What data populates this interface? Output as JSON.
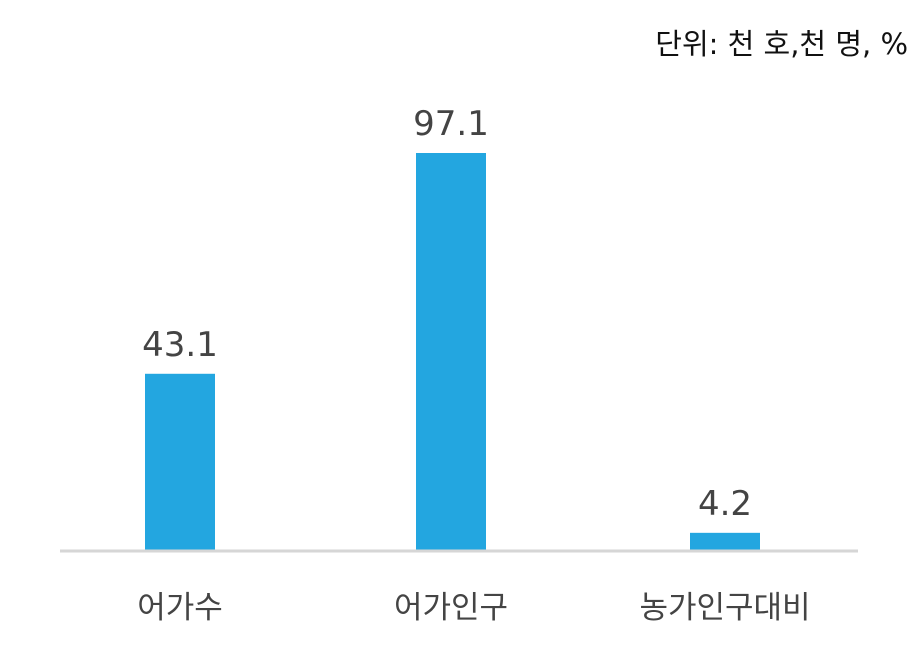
{
  "chart_data": {
    "type": "bar",
    "unit_note": "단위: 천 호,천 명, %",
    "categories": [
      "어가수",
      "어가인구",
      "농가인구대비"
    ],
    "values": [
      43.1,
      97.1,
      4.2
    ],
    "data_labels": [
      "43.1",
      "97.1",
      "4.2"
    ],
    "ylim": [
      0,
      100
    ],
    "grid": false,
    "legend": "none",
    "colors": {
      "bar": "#23a6e0",
      "baseline": "#d6d6d6",
      "value_text": "#444444",
      "category_text": "#444444",
      "unit_text": "#111111"
    }
  }
}
